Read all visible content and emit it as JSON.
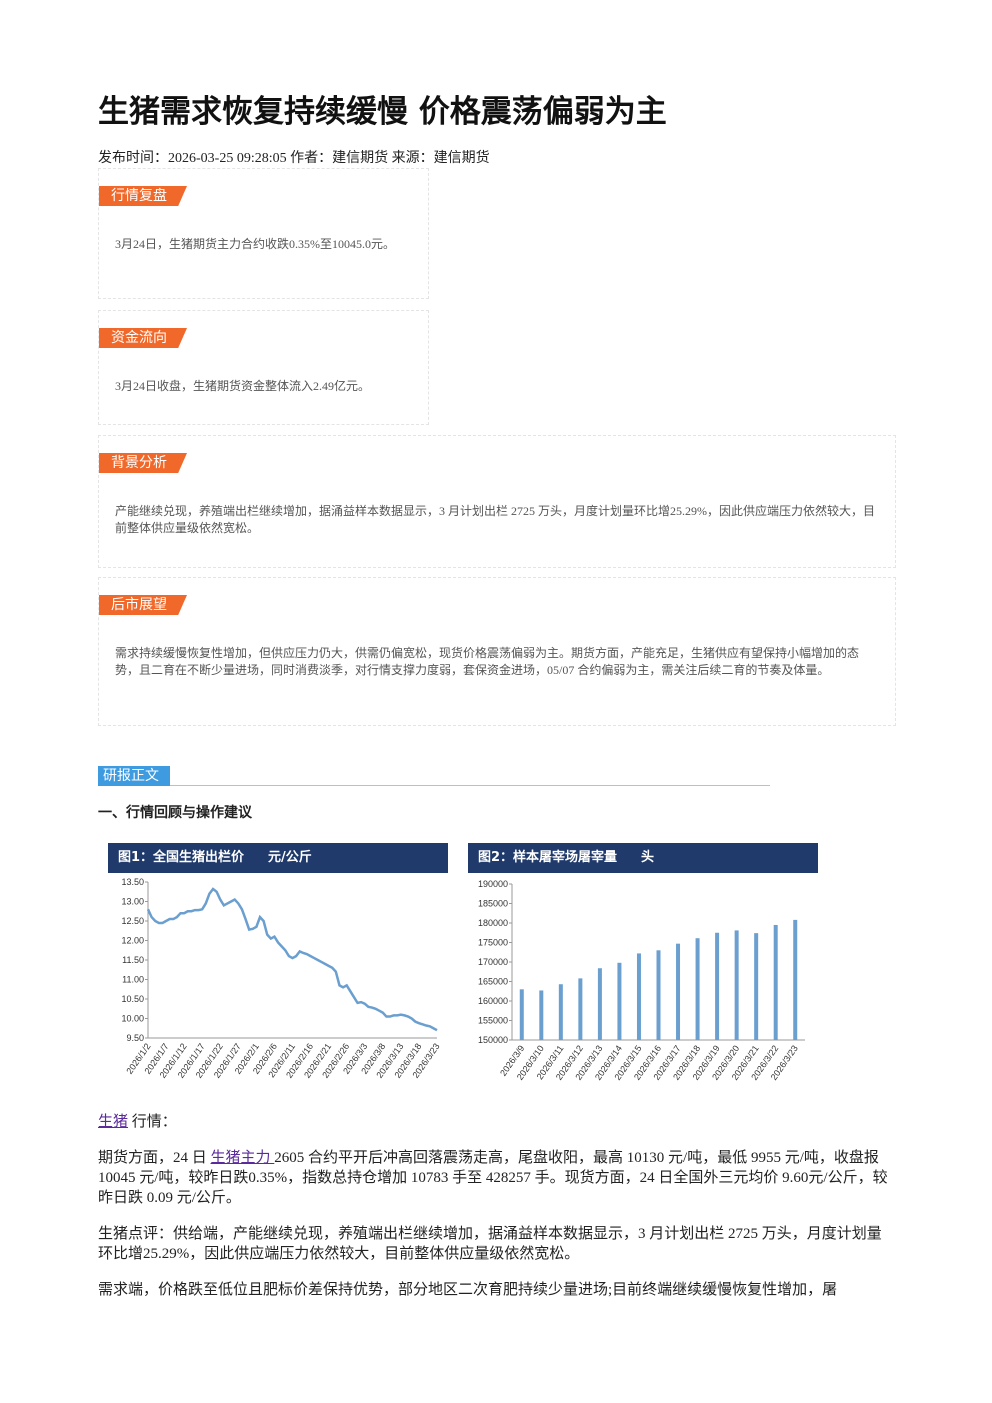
{
  "header": {
    "title": "生猪需求恢复持续缓慢 价格震荡偏弱为主",
    "meta": "发布时间：2026-03-25 09:28:05 作者：建信期货 来源：建信期货"
  },
  "sections": [
    {
      "label": "行情复盘",
      "text": "3月24日，生猪期货主力合约收跌0.35%至10045.0元。"
    },
    {
      "label": "资金流向",
      "text": "3月24日收盘，生猪期货资金整体流入2.49亿元。"
    },
    {
      "label": "背景分析",
      "text": "产能继续兑现，养殖端出栏继续增加，据涌益样本数据显示，3 月计划出栏 2725 万头，月度计划量环比增25.29%，因此供应端压力依然较大，目前整体供应量级依然宽松。"
    },
    {
      "label": "后市展望",
      "text": "需求持续缓慢恢复性增加，但供应压力仍大，供需仍偏宽松，现货价格震荡偏弱为主。期货方面，产能充足，生猪供应有望保持小幅增加的态势，且二育在不断少量进场，同时消费淡季，对行情支撑力度弱，套保资金进场，05/07 合约偏弱为主，需关注后续二育的节奏及体量。"
    }
  ],
  "tag": "研报正文",
  "heading": "一、行情回顾与操作建议",
  "chart_data": [
    {
      "type": "line",
      "title": "图1：全国生猪出栏价",
      "unit": "元/公斤",
      "color": "#6a9fcf",
      "categories": [
        "2026/1/2",
        null,
        null,
        null,
        null,
        "2026/1/7",
        null,
        null,
        null,
        null,
        "2026/1/12",
        null,
        null,
        null,
        null,
        "2026/1/17",
        null,
        null,
        null,
        null,
        "2026/1/22",
        null,
        null,
        null,
        null,
        "2026/1/27",
        null,
        null,
        null,
        null,
        "2026/2/1",
        null,
        null,
        null,
        null,
        "2026/2/6",
        null,
        null,
        null,
        null,
        "2026/2/11",
        null,
        null,
        null,
        null,
        "2026/2/16",
        null,
        null,
        null,
        null,
        "2026/2/21",
        null,
        null,
        null,
        null,
        "2026/2/26",
        null,
        null,
        null,
        null,
        "2026/3/3",
        null,
        null,
        null,
        null,
        "2026/3/8",
        null,
        null,
        null,
        null,
        "2026/3/13",
        null,
        null,
        null,
        null,
        "2026/3/18",
        null,
        null,
        null,
        null,
        "2026/3/23"
      ],
      "values": [
        12.8,
        12.6,
        12.5,
        12.45,
        12.45,
        12.5,
        12.55,
        12.55,
        12.6,
        12.7,
        12.7,
        12.75,
        12.75,
        12.78,
        12.78,
        12.8,
        12.95,
        13.2,
        13.32,
        13.25,
        13.05,
        12.9,
        12.95,
        13.0,
        13.05,
        12.95,
        12.8,
        12.55,
        12.28,
        12.3,
        12.35,
        12.6,
        12.5,
        12.15,
        12.05,
        12.1,
        11.95,
        11.85,
        11.75,
        11.6,
        11.55,
        11.6,
        11.72,
        11.68,
        11.65,
        11.6,
        11.55,
        11.5,
        11.45,
        11.4,
        11.35,
        11.3,
        11.2,
        10.85,
        10.8,
        10.85,
        10.7,
        10.55,
        10.4,
        10.42,
        10.38,
        10.3,
        10.28,
        10.25,
        10.2,
        10.15,
        10.05,
        10.05,
        10.08,
        10.08,
        10.1,
        10.08,
        10.05,
        10.0,
        9.92,
        9.88,
        9.85,
        9.82,
        9.8,
        9.75,
        9.7
      ],
      "ylim": [
        9.5,
        13.5
      ],
      "yticks": [
        {
          "value": 9.5,
          "label": "9.50"
        },
        {
          "value": 10,
          "label": "10.00"
        },
        {
          "value": 10.5,
          "label": "10.50"
        },
        {
          "value": 11,
          "label": "11.00"
        },
        {
          "value": 11.5,
          "label": "11.50"
        },
        {
          "value": 12,
          "label": "12.00"
        },
        {
          "value": 12.5,
          "label": "12.50"
        },
        {
          "value": 13,
          "label": "13.00"
        },
        {
          "value": 13.5,
          "label": "13.50"
        }
      ]
    },
    {
      "type": "bar",
      "title": "图2：样本屠宰场屠宰量",
      "unit": "头",
      "color": "#6a9fcf",
      "categories": [
        "2026/3/9",
        "2026/3/10",
        "2026/3/11",
        "2026/3/12",
        "2026/3/13",
        "2026/3/14",
        "2026/3/15",
        "2026/3/16",
        "2026/3/17",
        "2026/3/18",
        "2026/3/19",
        "2026/3/20",
        "2026/3/21",
        "2026/3/22",
        "2026/3/23"
      ],
      "values": [
        163000,
        162700,
        164300,
        165800,
        168400,
        169800,
        172200,
        173000,
        174700,
        176100,
        177500,
        178100,
        177400,
        179500,
        180800
      ],
      "ylim": [
        150000,
        190000
      ],
      "yticks": [
        150000,
        155000,
        160000,
        165000,
        170000,
        175000,
        180000,
        185000,
        190000
      ]
    }
  ],
  "body": {
    "market_link": "生猪",
    "market_label": "行情：",
    "p1": {
      "before": "期货方面，24 日 ",
      "link": "生猪主力 ",
      "after": "2605 合约平开后冲高回落震荡走高，尾盘收阳，最高 10130 元/吨，最低 9955 元/吨，收盘报 10045 元/吨，较昨日跌0.35%，指数总持仓增加 10783 手至 428257 手。现货方面，24 日全国外三元均价 9.60元/公斤，较昨日跌 0.09 元/公斤。"
    },
    "p2": "生猪点评：供给端，产能继续兑现，养殖端出栏继续增加，据涌益样本数据显示，3 月计划出栏 2725 万头，月度计划量环比增25.29%，因此供应端压力依然较大，目前整体供应量级依然宽松。",
    "p3": "需求端，价格跌至低位且肥标价差保持优势，部分地区二次育肥持续少量进场;目前终端继续缓慢恢复性增加，屠"
  }
}
